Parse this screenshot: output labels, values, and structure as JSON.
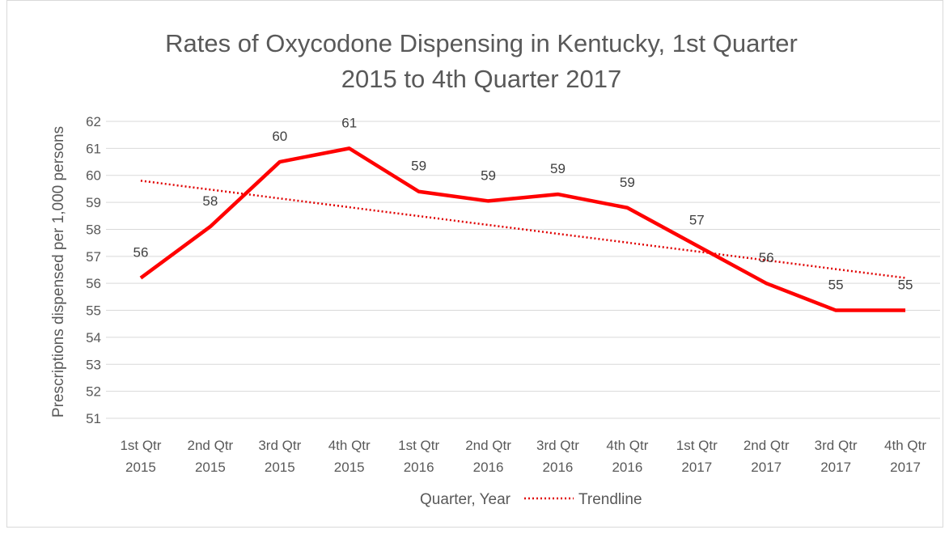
{
  "chart_data": {
    "type": "line",
    "title_lines": [
      "Rates of Oxycodone Dispensing in Kentucky, 1st Quarter",
      "2015 to 4th Quarter 2017"
    ],
    "ylabel": "Prescriptions dispensed per 1,000 persons",
    "xlabel": "Quarter,  Year",
    "legend_entry": "Trendline",
    "ylim": [
      51,
      62
    ],
    "yticks": [
      51,
      52,
      53,
      54,
      55,
      56,
      57,
      58,
      59,
      60,
      61,
      62
    ],
    "categories": [
      [
        "1st Qtr",
        "2015"
      ],
      [
        "2nd Qtr",
        "2015"
      ],
      [
        "3rd Qtr",
        "2015"
      ],
      [
        "4th Qtr",
        "2015"
      ],
      [
        "1st Qtr",
        "2016"
      ],
      [
        "2nd Qtr",
        "2016"
      ],
      [
        "3rd Qtr",
        "2016"
      ],
      [
        "4th Qtr",
        "2016"
      ],
      [
        "1st Qtr",
        "2017"
      ],
      [
        "2nd Qtr",
        "2017"
      ],
      [
        "3rd Qtr",
        "2017"
      ],
      [
        "4th Qtr",
        "2017"
      ]
    ],
    "series": [
      {
        "values": [
          56.2,
          58.1,
          60.5,
          61.0,
          59.4,
          59.05,
          59.3,
          58.8,
          57.4,
          56.0,
          55.0,
          55.0
        ],
        "data_labels": [
          "56",
          "58",
          "60",
          "61",
          "59",
          "59",
          "59",
          "59",
          "57",
          "56",
          "55",
          "55"
        ],
        "color": "#ff0000",
        "style": "solid"
      }
    ],
    "trendline": {
      "color": "#e00000",
      "style": "dotted",
      "start": 59.8,
      "end": 56.2
    },
    "grid": true,
    "legend_position": "bottom"
  }
}
